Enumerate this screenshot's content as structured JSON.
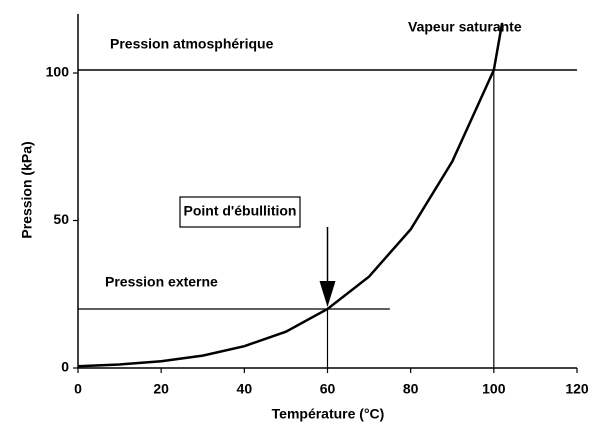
{
  "chart_data": {
    "type": "line",
    "xlabel": "Température (°C)",
    "ylabel": "Pression (kPa)",
    "xlim": [
      0,
      120
    ],
    "ylim": [
      0,
      120
    ],
    "xticks": [
      0,
      20,
      40,
      60,
      80,
      100,
      120
    ],
    "yticks": [
      0,
      50,
      100
    ],
    "series": [
      {
        "name": "Vapeur saturante",
        "color": "#000000",
        "x": [
          0,
          10,
          20,
          30,
          40,
          50,
          60,
          70,
          80,
          90,
          100,
          102
        ],
        "values": [
          0.6,
          1.2,
          2.3,
          4.2,
          7.4,
          12.3,
          20,
          31,
          47,
          70,
          101,
          117
        ]
      }
    ],
    "atmospheric": {
      "label": "Pression atmosphérique",
      "value": 101
    },
    "external": {
      "label": "Pression externe",
      "value": 20,
      "x_end": 75
    },
    "boiling_point": {
      "label": "Point d'ébullition",
      "x": 60,
      "y": 20
    },
    "atmospheric_boiling": {
      "x": 100,
      "y": 101
    }
  }
}
